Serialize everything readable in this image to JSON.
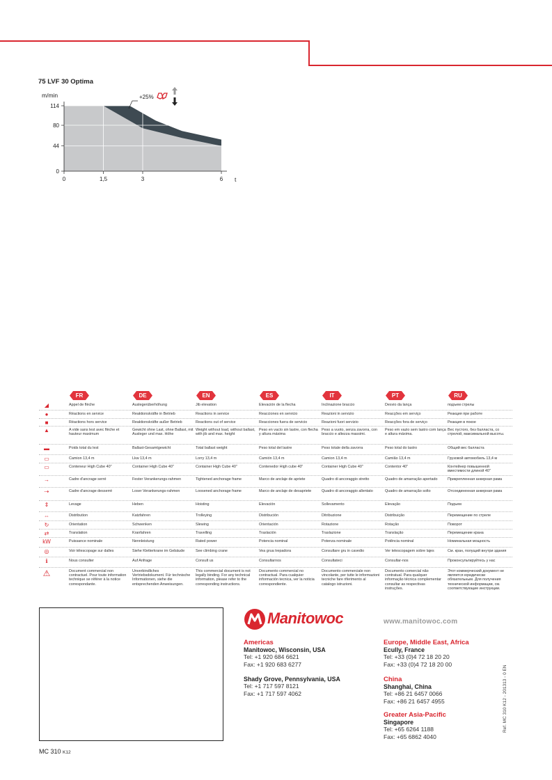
{
  "chart": {
    "title": "75 LVF 30 Optima",
    "y_unit": "m/min",
    "x_unit": "t",
    "annotation": "+25%"
  },
  "chart_data": {
    "type": "area",
    "title": "75 LVF 30 Optima",
    "ylabel": "m/min",
    "xlabel": "t",
    "x_ticks": [
      "0",
      "1,5",
      "3",
      "6"
    ],
    "y_ticks": [
      "0",
      "44",
      "80",
      "114"
    ],
    "xlim": [
      0,
      6
    ],
    "ylim": [
      0,
      114
    ],
    "series": [
      {
        "x": [
          0,
          1.5,
          3,
          4.5,
          6
        ],
        "values": [
          114,
          114,
          75,
          58,
          44
        ]
      },
      {
        "x": [
          0,
          2.5,
          3.5,
          4.5,
          6
        ],
        "values": [
          114,
          114,
          88,
          70,
          55
        ]
      }
    ],
    "grid": true,
    "colors": {
      "base": "#c8c9cb",
      "boost": "#3e4a52"
    }
  },
  "legend": {
    "languages": [
      "FR",
      "DE",
      "EN",
      "ES",
      "IT",
      "PT",
      "RU"
    ],
    "rows": [
      {
        "icon": "jib-elevation-icon",
        "glyph": "◢",
        "cells": [
          "Appel de flèche",
          "Auslegerüberhöhung",
          "Jib elevation",
          "Elevación de la flecha",
          "Inclinazione braccio",
          "Desvio da lança",
          "подъем стрелы"
        ]
      },
      {
        "icon": "in-service-dot-icon",
        "glyph": "●",
        "cells": [
          "Réactions en service",
          "Reaktionskräfte in Betrieb",
          "Reactions in service",
          "Reacciones en servicio",
          "Reazioni in servizio",
          "Reacções em serviço",
          "Реакция при работе"
        ]
      },
      {
        "icon": "out-of-service-square-icon",
        "glyph": "■",
        "cells": [
          "Réactions hors service",
          "Reaktionskräfte außer Betrieb",
          "Reactions out of service",
          "Reacciones fuera de servicio",
          "Reazioni fuori servizio",
          "Reacções fora de serviço",
          "Реакция в покое"
        ]
      },
      {
        "icon": "crane-weight-icon",
        "glyph": "▲",
        "cells": [
          "A vide sans lest avec flèche et hauteur maximum",
          "Gewicht ohne Last, ohne Ballast, mit Ausleger und max. Höhe",
          "Weight without load, without ballast, with jib and max. height",
          "Peso en vacío sin lastre, con flecha y altura máxima",
          "Peso a vuoto, senza zavorra, con braccio e altezza massimi.",
          "Peso em vazio sem lastro com lança e altura máxima.",
          "Вес пустого, без балласта, со стрелой, максимальной высоты."
        ]
      },
      {
        "icon": "ballast-icon",
        "glyph": "▬",
        "cells": [
          "Poids total du lest",
          "Ballast-Gesamtgewicht",
          "Total ballast weight",
          "Peso total del lastre",
          "Peso totale della zavorra",
          "Peso total do lastro",
          "Общий вес балласта"
        ]
      },
      {
        "icon": "lorry-icon",
        "glyph": "▭",
        "cells": [
          "Camion 13,4 m",
          "Lkw 13,4 m",
          "Lorry 13,4 m",
          "Camión 13,4 m",
          "Camion 13,4 m",
          "Camião 13,4 m",
          "Грузовой автомобиль 13,4 м"
        ]
      },
      {
        "icon": "container-icon",
        "glyph": "▭",
        "cells": [
          "Conteneur High Cube 40\"",
          "Container High Cube 40\"",
          "Container High Cube 40\"",
          "Contenedor High cube 40\"",
          "Container High Cube 40\"",
          "Contentor 40\"",
          "Контейнер повышенной вместимости длиной 40\""
        ]
      },
      {
        "icon": "tightened-anchorage-icon",
        "glyph": "→",
        "cells": [
          "Cadre d'ancrage serré",
          "Fester Verankerungs-rahmen",
          "Tightened anchorage frame",
          "Marco de anclaje de apriete",
          "Quadro di ancoraggio stretto",
          "Quadro de amarração apertado",
          "Прикрепленная анкерная рама"
        ]
      },
      {
        "icon": "loosened-anchorage-icon",
        "glyph": "⇢",
        "cells": [
          "Cadre d'ancrage desserré",
          "Loser Verankerungs-rahmen",
          "Loosened anchorage frame",
          "Marco de anclaje de desapriete",
          "Quadro di ancoraggio allentato",
          "Quadro de amarração solto",
          "Отсоединенная анкерная рама"
        ]
      },
      {
        "icon": "hoisting-icon",
        "glyph": "⇕",
        "cells": [
          "Levage",
          "Heben",
          "Hoisting",
          "Elevación",
          "Sollevamento",
          "Elevação",
          "Подъем"
        ]
      },
      {
        "icon": "trolleying-icon",
        "glyph": "⇔",
        "cells": [
          "Distribution",
          "Katzfahren",
          "Trolleying",
          "Distribución",
          "Ditribuzione",
          "Distribuição",
          "Перемещение по стреле"
        ]
      },
      {
        "icon": "slewing-icon",
        "glyph": "↻",
        "cells": [
          "Orientation",
          "Schwenken",
          "Slewing",
          "Orientación",
          "Rotazione",
          "Rotação",
          "Поворот"
        ]
      },
      {
        "icon": "travelling-icon",
        "glyph": "⇄",
        "cells": [
          "Translation",
          "Kranfahren",
          "Travelling",
          "Traslación",
          "Traslazione",
          "Translação",
          "Перемещение крана"
        ]
      },
      {
        "icon": "rated-power-icon",
        "glyph": "kW",
        "cells": [
          "Puissance nominale",
          "Nennleistung",
          "Rated power",
          "Potencia nominal",
          "Potenza nominale",
          "Potência nominal",
          "Номинальная мощность"
        ]
      },
      {
        "icon": "climbing-crane-icon",
        "glyph": "◎",
        "cells": [
          "Voir télescopage sur dalles",
          "Siehe Kletterkrane im Gebäude",
          "See climbing crane",
          "Vea grua trepadora",
          "Consultare gru in cavedio",
          "Ver telescopagem sobre lajes",
          "См. кран, полущий внутри здания"
        ]
      },
      {
        "icon": "consult-us-icon",
        "glyph": "ℹ",
        "cells": [
          "Nous consulter",
          "Auf Anfrage",
          "Consult us",
          "Consultarnos",
          "Consultateci",
          "Consultar-nos",
          "Проконсультируйтесь у нас"
        ]
      },
      {
        "icon": "warning-icon",
        "glyph": "⚠",
        "cells": [
          "Document commercial non contractuel. Pour toute information technique se référer à la notice correspondante.",
          "Unverbindliches Vertriebsdokument. Für technische Informationen, siehe die entsprechenden Anweisungen.",
          "This commercial document is not legally binding. For any technical information, please refer to the corresponding instructions.",
          "Documento commercial no contractual. Para cualquier información tecnica, ver la noticia correspondiente.",
          "Documento commerciale non vincolante, per tutte le informazioni tecniche fare riferimento al catalogo istruzioni.",
          "Documento comercial não contratual. Para qualquer informação técnica complementar consultar as respectivas instruções.",
          "Этот коммерческий документ не является юридически обязательным. Для получения технической информации, см. соответствующие инструкции."
        ]
      }
    ]
  },
  "footer": {
    "logo": "Manitowoc",
    "website": "www.manitowoc.com",
    "americas": {
      "region": "Americas",
      "city1": "Manitowoc, Wisconsin, USA",
      "tel1": "Tel: +1 920 684 6621",
      "fax1": "Fax: +1 920 683 6277",
      "city2": "Shady Grove, Pennsylvania, USA",
      "tel2": "Tel: +1 717 597 8121",
      "fax2": "Fax: +1 717 597 4062"
    },
    "emea": {
      "region": "Europe, Middle East, Africa",
      "city": "Ecully, France",
      "tel": "Tel: +33 (0)4 72 18 20 20",
      "fax": "Fax: +33 (0)4 72 18 20 00"
    },
    "china": {
      "region": "China",
      "city": "Shanghai, China",
      "tel": "Tel: +86 21 6457 0066",
      "fax": "Fax: +86 21 6457 4955"
    },
    "asia": {
      "region": "Greater Asia-Pacific",
      "city": "Singapore",
      "tel": "Tel: +65 6264 1188",
      "fax": "Fax: +65 6862 4040"
    },
    "ref": "Ref. MC 310 K12 - 201313 - 0 EN",
    "model": "MC 310",
    "model_suffix": "K12"
  }
}
